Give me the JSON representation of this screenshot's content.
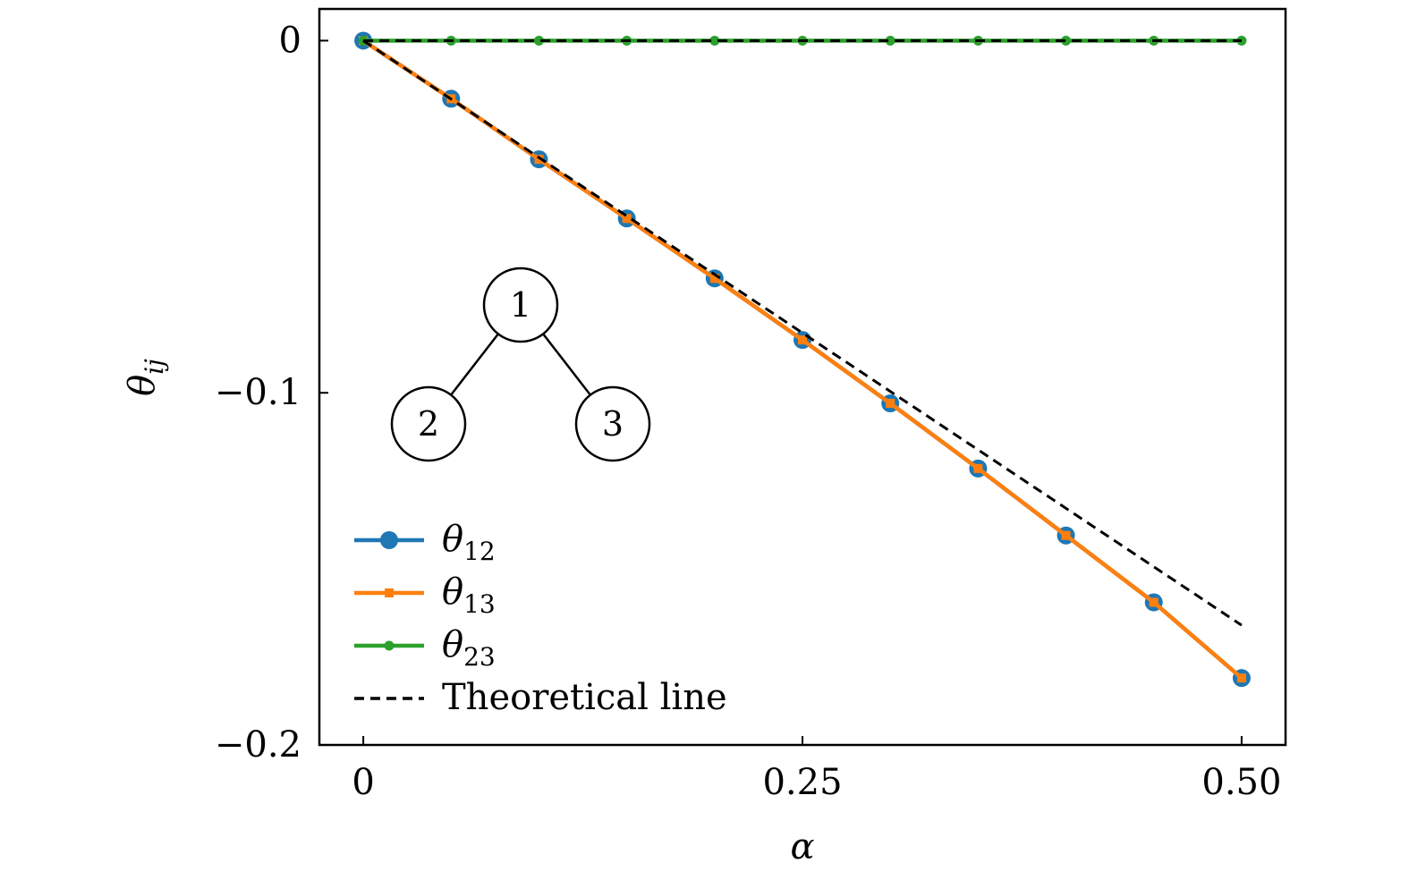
{
  "chart_data": {
    "type": "line",
    "title": "",
    "xlabel": "α",
    "ylabel": "θ",
    "ylabel_subscript": "ij",
    "xlim": [
      -0.025,
      0.525
    ],
    "ylim": [
      -0.2,
      0.009
    ],
    "x_ticks": [
      {
        "value": 0,
        "label": "0"
      },
      {
        "value": 0.25,
        "label": "0.25"
      },
      {
        "value": 0.5,
        "label": "0.50"
      }
    ],
    "y_ticks": [
      {
        "value": 0,
        "label": "0"
      },
      {
        "value": -0.1,
        "label": "−0.1"
      },
      {
        "value": -0.2,
        "label": "−0.2"
      }
    ],
    "grid": false,
    "legend_position": "lower-left",
    "x": [
      0,
      0.05,
      0.1,
      0.15,
      0.2,
      0.25,
      0.3,
      0.35,
      0.4,
      0.45,
      0.5
    ],
    "series": [
      {
        "name": "θ",
        "subscript": "12",
        "color": "#1f77b4",
        "marker": "circle",
        "line": "solid",
        "values": [
          0,
          -0.0165,
          -0.0337,
          -0.0505,
          -0.0675,
          -0.085,
          -0.103,
          -0.1215,
          -0.1405,
          -0.1595,
          -0.181
        ]
      },
      {
        "name": "θ",
        "subscript": "13",
        "color": "#ff7f0e",
        "marker": "square",
        "line": "solid",
        "values": [
          0,
          -0.0165,
          -0.0337,
          -0.0505,
          -0.0675,
          -0.085,
          -0.103,
          -0.1215,
          -0.1405,
          -0.1595,
          -0.181
        ]
      },
      {
        "name": "θ",
        "subscript": "23",
        "color": "#2ca02c",
        "marker": "small-circle",
        "line": "solid",
        "values": [
          0,
          0,
          0,
          0,
          0,
          0,
          0,
          0,
          0,
          0,
          0
        ]
      }
    ],
    "reference_lines": [
      {
        "name": "Theoretical line",
        "color": "#000000",
        "line": "dashed",
        "x": [
          0,
          0.5
        ],
        "values": [
          0,
          -0.166
        ]
      },
      {
        "name": "",
        "color": "#000000",
        "line": "dashed",
        "x": [
          0,
          0.5
        ],
        "values": [
          0,
          0
        ]
      }
    ],
    "inset_tree": {
      "nodes": [
        {
          "id": "1",
          "label": "1"
        },
        {
          "id": "2",
          "label": "2"
        },
        {
          "id": "3",
          "label": "3"
        }
      ],
      "edges": [
        [
          "1",
          "2"
        ],
        [
          "1",
          "3"
        ]
      ]
    }
  }
}
